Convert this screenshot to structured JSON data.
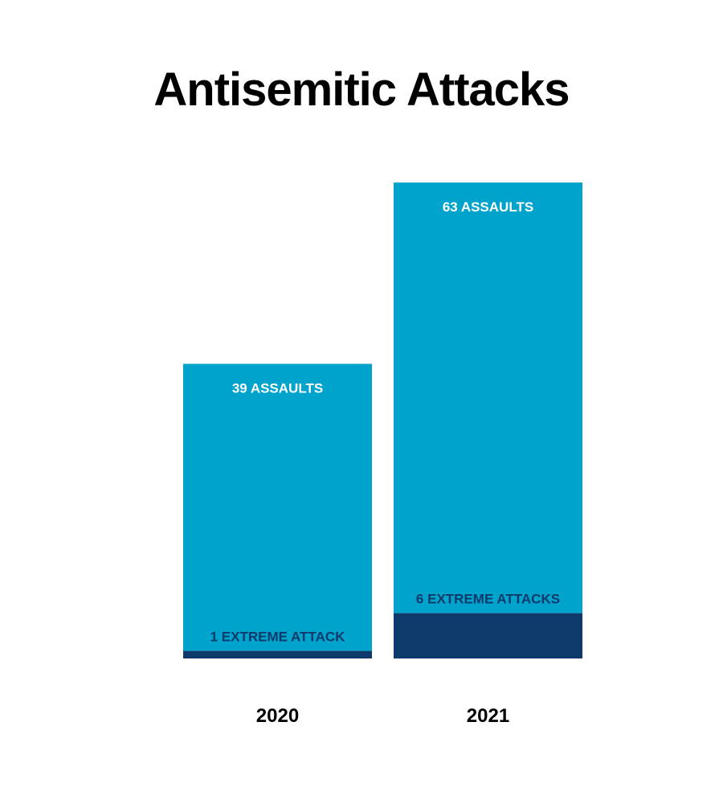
{
  "title": "Antisemitic Attacks",
  "colors": {
    "assaults": "#00a3cc",
    "extreme": "#0e3a6b",
    "assault_label": "#ffffff",
    "extreme_label": "#0e3a6b",
    "tick_label": "#000000"
  },
  "chart_data": {
    "type": "bar",
    "stacked": true,
    "title": "Antisemitic Attacks",
    "xlabel": "",
    "ylabel": "",
    "grid": false,
    "categories": [
      "2020",
      "2021"
    ],
    "series": [
      {
        "key": "extreme",
        "values": [
          1,
          6
        ],
        "labels": [
          "1 EXTREME ATTACK",
          "6 EXTREME ATTACKS"
        ]
      },
      {
        "key": "assaults",
        "values": [
          39,
          63
        ],
        "labels": [
          "39 ASSAULTS",
          "63 ASSAULTS"
        ]
      }
    ]
  }
}
